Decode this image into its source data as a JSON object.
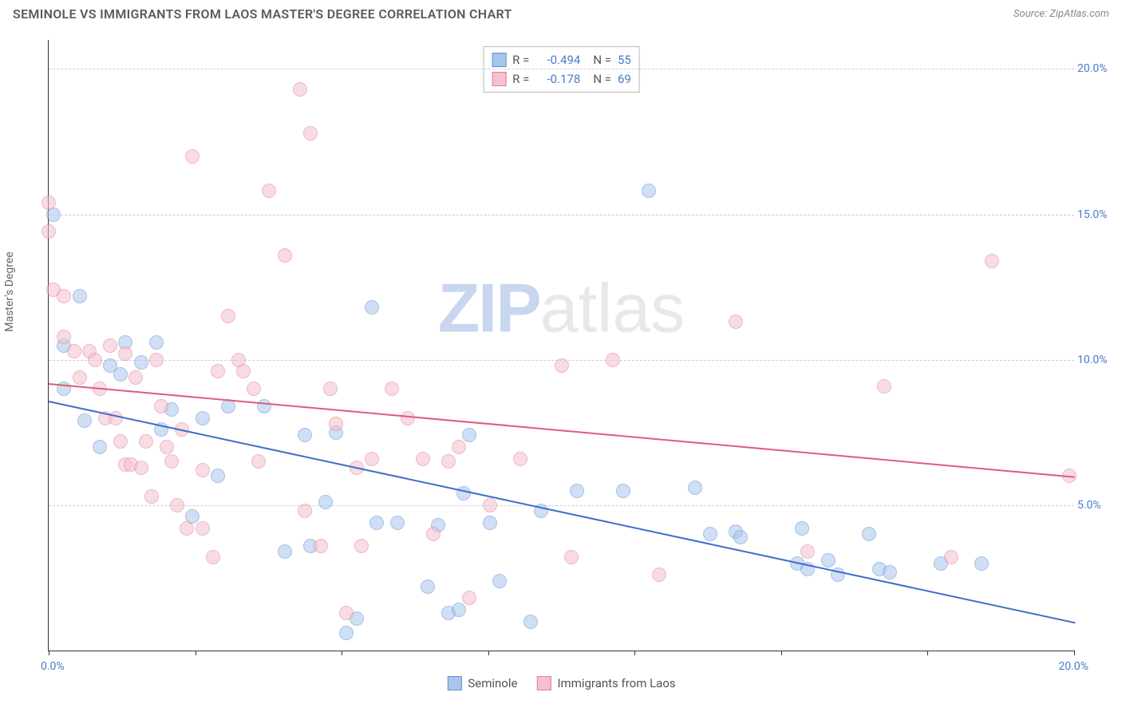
{
  "title": "SEMINOLE VS IMMIGRANTS FROM LAOS MASTER'S DEGREE CORRELATION CHART",
  "source": "Source: ZipAtlas.com",
  "watermark": {
    "zip": "ZIP",
    "atlas": "atlas"
  },
  "chart": {
    "type": "scatter",
    "ylabel": "Master's Degree",
    "xlim": [
      0,
      20
    ],
    "ylim": [
      0,
      21
    ],
    "xtick_positions": [
      0,
      2.86,
      5.71,
      8.57,
      11.43,
      14.29,
      17.14,
      20
    ],
    "ytick_labels": [
      "5.0%",
      "10.0%",
      "15.0%",
      "20.0%"
    ],
    "ytick_values": [
      5,
      10,
      15,
      20
    ],
    "xlabel_min": "0.0%",
    "xlabel_max": "20.0%",
    "background_color": "#ffffff",
    "grid_color": "#d0d0d0",
    "axis_color": "#333333",
    "marker_radius": 9,
    "marker_opacity": 0.55,
    "legend_stats": [
      {
        "swatch_fill": "#a9c5ec",
        "swatch_border": "#5e8fd6",
        "r_label": "R =",
        "r": "-0.494",
        "n_label": "N =",
        "n": "55"
      },
      {
        "swatch_fill": "#f4c1cd",
        "swatch_border": "#e77a97",
        "r_label": "R =",
        "r": "-0.178",
        "n_label": "N =",
        "n": "69"
      }
    ],
    "bottom_legend": [
      {
        "swatch_fill": "#a9c5ec",
        "swatch_border": "#5e8fd6",
        "label": "Seminole"
      },
      {
        "swatch_fill": "#f4c1cd",
        "swatch_border": "#e77a97",
        "label": "Immigrants from Laos"
      }
    ],
    "series": [
      {
        "name": "Seminole",
        "fill": "#a9c5ec",
        "border": "#5e8fd6",
        "trend_color": "#3d6fc9",
        "trend_start": [
          0,
          8.6
        ],
        "trend_end": [
          20,
          1.0
        ],
        "points": [
          [
            0.1,
            15.0
          ],
          [
            0.3,
            10.5
          ],
          [
            0.3,
            9.0
          ],
          [
            0.6,
            12.2
          ],
          [
            0.7,
            7.9
          ],
          [
            1.0,
            7.0
          ],
          [
            1.2,
            9.8
          ],
          [
            1.4,
            9.5
          ],
          [
            1.5,
            10.6
          ],
          [
            1.8,
            9.9
          ],
          [
            2.1,
            10.6
          ],
          [
            2.2,
            7.6
          ],
          [
            2.4,
            8.3
          ],
          [
            2.8,
            4.6
          ],
          [
            3.0,
            8.0
          ],
          [
            3.3,
            6.0
          ],
          [
            3.5,
            8.4
          ],
          [
            4.2,
            8.4
          ],
          [
            4.6,
            3.4
          ],
          [
            5.0,
            7.4
          ],
          [
            5.1,
            3.6
          ],
          [
            5.4,
            5.1
          ],
          [
            5.6,
            7.5
          ],
          [
            5.8,
            0.6
          ],
          [
            6.0,
            1.1
          ],
          [
            6.3,
            11.8
          ],
          [
            6.4,
            4.4
          ],
          [
            6.8,
            4.4
          ],
          [
            7.4,
            2.2
          ],
          [
            7.6,
            4.3
          ],
          [
            7.8,
            1.3
          ],
          [
            8.0,
            1.4
          ],
          [
            8.1,
            5.4
          ],
          [
            8.2,
            7.4
          ],
          [
            8.6,
            4.4
          ],
          [
            8.8,
            2.4
          ],
          [
            9.4,
            1.0
          ],
          [
            9.6,
            4.8
          ],
          [
            10.3,
            5.5
          ],
          [
            11.2,
            5.5
          ],
          [
            11.7,
            15.8
          ],
          [
            12.6,
            5.6
          ],
          [
            12.9,
            4.0
          ],
          [
            13.4,
            4.1
          ],
          [
            13.5,
            3.9
          ],
          [
            14.6,
            3.0
          ],
          [
            14.7,
            4.2
          ],
          [
            14.8,
            2.8
          ],
          [
            15.2,
            3.1
          ],
          [
            15.4,
            2.6
          ],
          [
            16.0,
            4.0
          ],
          [
            16.2,
            2.8
          ],
          [
            16.4,
            2.7
          ],
          [
            17.4,
            3.0
          ],
          [
            18.2,
            3.0
          ]
        ]
      },
      {
        "name": "Immigrants from Laos",
        "fill": "#f4c1cd",
        "border": "#e77a97",
        "trend_color": "#e05a7d",
        "trend_start": [
          0,
          9.2
        ],
        "trend_end": [
          20,
          6.0
        ],
        "points": [
          [
            0.0,
            15.4
          ],
          [
            0.0,
            14.4
          ],
          [
            0.1,
            12.4
          ],
          [
            0.3,
            12.2
          ],
          [
            0.3,
            10.8
          ],
          [
            0.5,
            10.3
          ],
          [
            0.6,
            9.4
          ],
          [
            0.8,
            10.3
          ],
          [
            0.9,
            10.0
          ],
          [
            1.0,
            9.0
          ],
          [
            1.1,
            8.0
          ],
          [
            1.2,
            10.5
          ],
          [
            1.3,
            8.0
          ],
          [
            1.4,
            7.2
          ],
          [
            1.5,
            10.2
          ],
          [
            1.5,
            6.4
          ],
          [
            1.6,
            6.4
          ],
          [
            1.7,
            9.4
          ],
          [
            1.8,
            6.3
          ],
          [
            1.9,
            7.2
          ],
          [
            2.0,
            5.3
          ],
          [
            2.1,
            10.0
          ],
          [
            2.2,
            8.4
          ],
          [
            2.3,
            7.0
          ],
          [
            2.4,
            6.5
          ],
          [
            2.5,
            5.0
          ],
          [
            2.6,
            7.6
          ],
          [
            2.7,
            4.2
          ],
          [
            2.8,
            17.0
          ],
          [
            3.0,
            4.2
          ],
          [
            3.0,
            6.2
          ],
          [
            3.2,
            3.2
          ],
          [
            3.3,
            9.6
          ],
          [
            3.5,
            11.5
          ],
          [
            3.7,
            10.0
          ],
          [
            3.8,
            9.6
          ],
          [
            4.0,
            9.0
          ],
          [
            4.1,
            6.5
          ],
          [
            4.3,
            15.8
          ],
          [
            4.6,
            13.6
          ],
          [
            4.9,
            19.3
          ],
          [
            5.0,
            4.8
          ],
          [
            5.1,
            17.8
          ],
          [
            5.3,
            3.6
          ],
          [
            5.5,
            9.0
          ],
          [
            5.6,
            7.8
          ],
          [
            5.8,
            1.3
          ],
          [
            6.0,
            6.3
          ],
          [
            6.1,
            3.6
          ],
          [
            6.3,
            6.6
          ],
          [
            6.7,
            9.0
          ],
          [
            7.0,
            8.0
          ],
          [
            7.3,
            6.6
          ],
          [
            7.5,
            4.0
          ],
          [
            7.8,
            6.5
          ],
          [
            8.0,
            7.0
          ],
          [
            8.2,
            1.8
          ],
          [
            8.6,
            5.0
          ],
          [
            9.2,
            6.6
          ],
          [
            10.0,
            9.8
          ],
          [
            10.2,
            3.2
          ],
          [
            11.0,
            10.0
          ],
          [
            11.9,
            2.6
          ],
          [
            13.4,
            11.3
          ],
          [
            14.8,
            3.4
          ],
          [
            16.3,
            9.1
          ],
          [
            17.6,
            3.2
          ],
          [
            18.4,
            13.4
          ],
          [
            19.9,
            6.0
          ]
        ]
      }
    ]
  }
}
